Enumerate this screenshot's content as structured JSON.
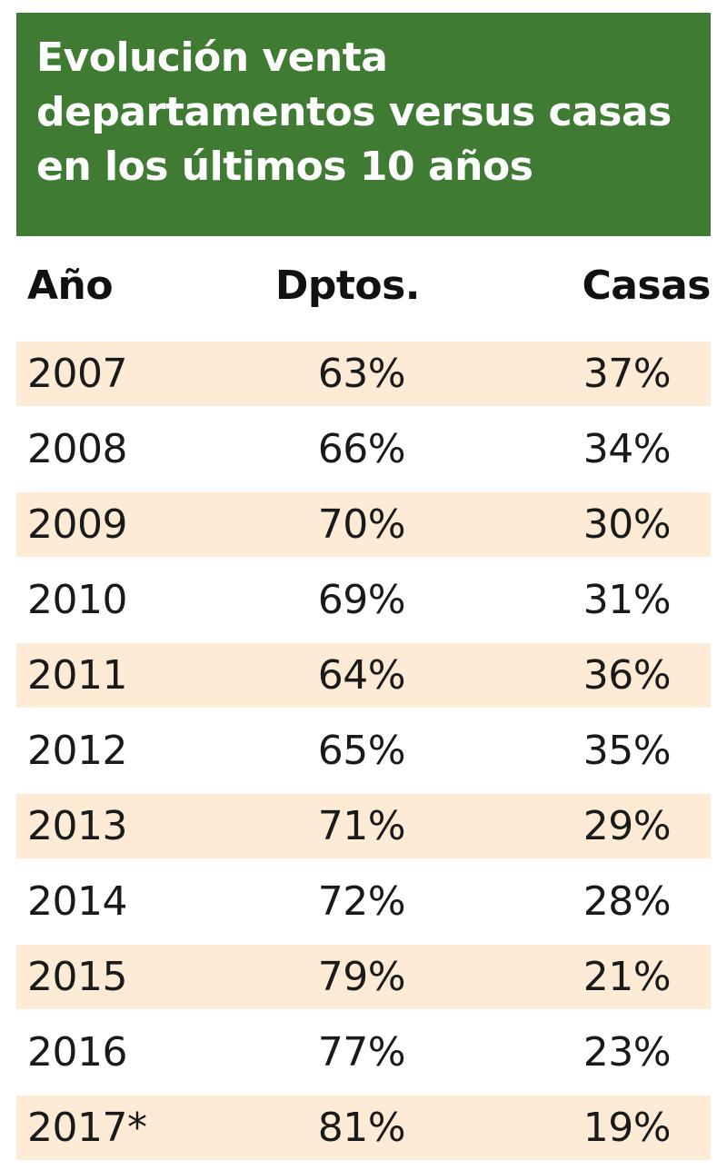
{
  "title": "Evolución venta departamentos versus casas en los últimos 10 años",
  "colors": {
    "title_background": "#3f7b33",
    "title_text": "#ffffff",
    "row_shade": "#fdebd6",
    "text": "#1a1a1a"
  },
  "chart_data": {
    "type": "table",
    "title": "Evolución venta departamentos versus casas en los últimos 10 años",
    "columns": [
      "Año",
      "Dptos.",
      "Casas"
    ],
    "rows": [
      [
        "2007",
        "63%",
        "37%"
      ],
      [
        "2008",
        "66%",
        "34%"
      ],
      [
        "2009",
        "70%",
        "30%"
      ],
      [
        "2010",
        "69%",
        "31%"
      ],
      [
        "2011",
        "64%",
        "36%"
      ],
      [
        "2012",
        "65%",
        "35%"
      ],
      [
        "2013",
        "71%",
        "29%"
      ],
      [
        "2014",
        "72%",
        "28%"
      ],
      [
        "2015",
        "79%",
        "21%"
      ],
      [
        "2016",
        "77%",
        "23%"
      ],
      [
        "2017*",
        "81%",
        "19%"
      ]
    ]
  }
}
